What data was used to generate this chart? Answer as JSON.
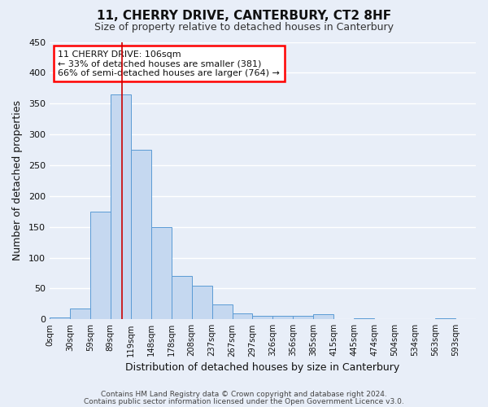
{
  "title": "11, CHERRY DRIVE, CANTERBURY, CT2 8HF",
  "subtitle": "Size of property relative to detached houses in Canterbury",
  "xlabel": "Distribution of detached houses by size in Canterbury",
  "ylabel": "Number of detached properties",
  "footer_line1": "Contains HM Land Registry data © Crown copyright and database right 2024.",
  "footer_line2": "Contains public sector information licensed under the Open Government Licence v3.0.",
  "bin_edges": [
    0,
    30,
    59,
    89,
    119,
    148,
    178,
    208,
    237,
    267,
    297,
    326,
    356,
    385,
    415,
    445,
    474,
    504,
    534,
    563,
    593,
    623
  ],
  "bin_labels": [
    "0sqm",
    "30sqm",
    "59sqm",
    "89sqm",
    "119sqm",
    "148sqm",
    "178sqm",
    "208sqm",
    "237sqm",
    "267sqm",
    "297sqm",
    "326sqm",
    "356sqm",
    "385sqm",
    "415sqm",
    "445sqm",
    "474sqm",
    "504sqm",
    "534sqm",
    "563sqm",
    "593sqm"
  ],
  "bar_values": [
    3,
    18,
    175,
    365,
    275,
    150,
    70,
    55,
    24,
    10,
    6,
    6,
    6,
    8,
    0,
    2,
    0,
    0,
    0,
    2,
    0
  ],
  "bar_color": "#c5d8f0",
  "bar_edge_color": "#5b9bd5",
  "ylim": [
    0,
    450
  ],
  "yticks": [
    0,
    50,
    100,
    150,
    200,
    250,
    300,
    350,
    400,
    450
  ],
  "annotation_title": "11 CHERRY DRIVE: 106sqm",
  "annotation_line2": "← 33% of detached houses are smaller (381)",
  "annotation_line3": "66% of semi-detached houses are larger (764) →",
  "property_size": 106,
  "red_line_color": "#cc0000",
  "bg_color": "#e8eef8",
  "grid_color": "#ffffff",
  "title_fontsize": 11,
  "subtitle_fontsize": 9
}
